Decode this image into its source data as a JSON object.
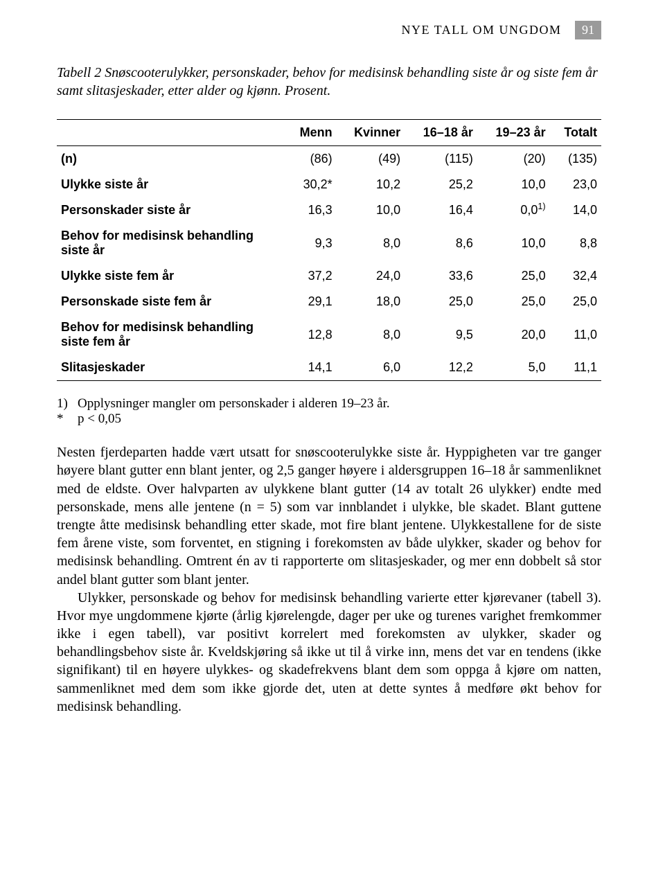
{
  "header": {
    "section_title": "NYE TALL OM UNGDOM",
    "page_number": "91"
  },
  "caption": "Tabell 2 Snøscooterulykker, personskader, behov for medisinsk behandling siste år og siste fem år samt slitasjeskader, etter alder og kjønn. Prosent.",
  "table": {
    "columns": [
      "",
      "Menn",
      "Kvinner",
      "16–18 år",
      "19–23 år",
      "Totalt"
    ],
    "rows": [
      {
        "label": "(n)",
        "cells": [
          "(86)",
          "(49)",
          "(115)",
          "(20)",
          "(135)"
        ]
      },
      {
        "label": "Ulykke siste år",
        "cells": [
          "30,2*",
          "10,2",
          "25,2",
          "10,0",
          "23,0"
        ]
      },
      {
        "label": "Personskader siste år",
        "cells": [
          "16,3",
          "10,0",
          "16,4",
          "0,0¹⁾",
          "14,0"
        ]
      },
      {
        "label": "Behov for medisinsk behandling siste år",
        "cells": [
          "9,3",
          "8,0",
          "8,6",
          "10,0",
          "8,8"
        ]
      },
      {
        "label": "Ulykke siste fem år",
        "cells": [
          "37,2",
          "24,0",
          "33,6",
          "25,0",
          "32,4"
        ]
      },
      {
        "label": "Personskade siste fem år",
        "cells": [
          "29,1",
          "18,0",
          "25,0",
          "25,0",
          "25,0"
        ]
      },
      {
        "label": "Behov for medisinsk behandling siste fem år",
        "cells": [
          "12,8",
          "8,0",
          "9,5",
          "20,0",
          "11,0"
        ]
      },
      {
        "label": "Slitasjeskader",
        "cells": [
          "14,1",
          "6,0",
          "12,2",
          "5,0",
          "11,1"
        ]
      }
    ],
    "sup_marker": "1)"
  },
  "footnotes": [
    {
      "marker": "1)",
      "text": "Opplysninger mangler om personskader i alderen 19–23 år."
    },
    {
      "marker": "*",
      "text": "p < 0,05"
    }
  ],
  "paragraphs": [
    "Nesten fjerdeparten hadde vært utsatt for snøscooterulykke siste år. Hyppigheten var tre ganger høyere blant gutter enn blant jenter, og 2,5 ganger høyere i aldersgruppen 16–18 år sammenliknet med de eldste. Over halvparten av ulykkene blant gutter (14 av totalt 26 ulykker) endte med personskade, mens alle jentene (n = 5) som var innblandet i ulykke, ble skadet. Blant guttene trengte åtte medisinsk behandling etter skade, mot fire blant jentene. Ulykkestallene for de siste fem årene viste, som forventet, en stigning i forekomsten av både ulykker, skader og behov for medisinsk behandling. Omtrent én av ti rapporterte om slitasjeskader, og mer enn dobbelt så stor andel blant gutter som blant jenter.",
    "Ulykker, personskade og behov for medisinsk behandling varierte etter kjørevaner (tabell 3). Hvor mye ungdommene kjørte (årlig kjørelengde, dager per uke og turenes varighet fremkommer ikke i egen tabell), var positivt korrelert med forekomsten av ulykker, skader og behandlingsbehov siste år. Kveldskjøring så ikke ut til å virke inn, mens det var en tendens (ikke signifikant) til en høyere ulykkes- og skadefrekvens blant dem som oppga å kjøre om natten, sammenliknet med dem som ikke gjorde det, uten at dette syntes å medføre økt behov for medisinsk behandling."
  ]
}
